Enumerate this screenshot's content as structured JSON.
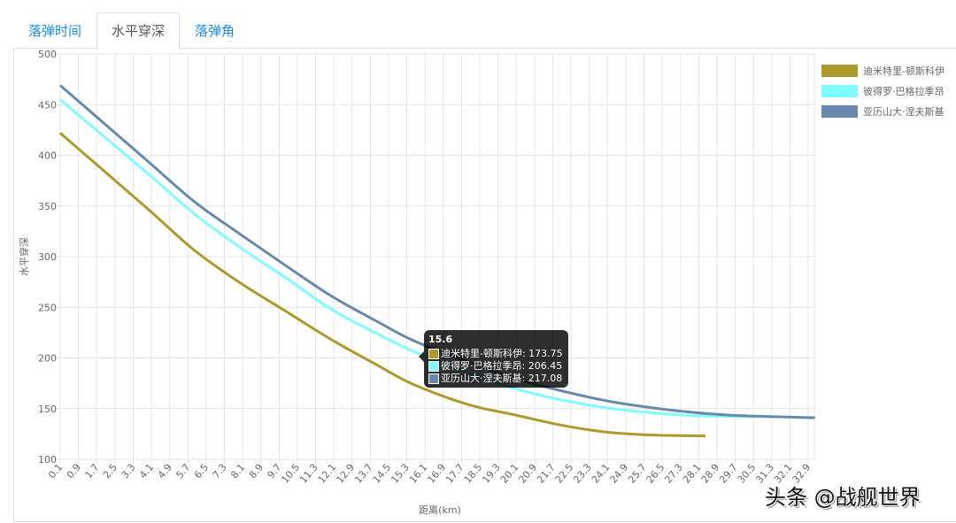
{
  "tabs": [
    {
      "label": "落弹时间",
      "active": false
    },
    {
      "label": "水平穿深",
      "active": true
    },
    {
      "label": "落弹角",
      "active": false
    }
  ],
  "chart_data": {
    "type": "line",
    "xlabel": "距离(km)",
    "ylabel": "水平穿深",
    "ylim": [
      100,
      500
    ],
    "yticks": [
      100,
      150,
      200,
      250,
      300,
      350,
      400,
      450,
      500
    ],
    "xlim": [
      0.1,
      33.2
    ],
    "xticks": [
      "0.1",
      "0.9",
      "1.7",
      "2.5",
      "3.3",
      "4.1",
      "4.9",
      "5.7",
      "6.5",
      "7.3",
      "8.1",
      "8.9",
      "9.7",
      "10.5",
      "11.3",
      "12.1",
      "12.9",
      "13.7",
      "14.5",
      "15.3",
      "16.1",
      "16.9",
      "17.7",
      "18.5",
      "19.3",
      "20.1",
      "20.9",
      "21.7",
      "22.5",
      "23.3",
      "24.1",
      "24.9",
      "25.7",
      "26.5",
      "27.3",
      "28.1",
      "28.9",
      "29.7",
      "30.5",
      "31.3",
      "32.1",
      "32.9"
    ],
    "grid": true,
    "legend_position": "right",
    "series": [
      {
        "name": "迪米特里-顿斯科伊",
        "color": "#ad9a2c",
        "x": [
          0.1,
          2,
          4,
          6,
          8,
          10,
          12,
          14,
          15.6,
          18,
          20,
          22,
          24,
          26,
          28.4
        ],
        "y": [
          422,
          385,
          346,
          306,
          274,
          246,
          218,
          193,
          173.75,
          154,
          144,
          134,
          127,
          124,
          123
        ]
      },
      {
        "name": "彼得罗·巴格拉季昂",
        "color": "#80fbff",
        "x": [
          0.1,
          2,
          4,
          6,
          8,
          10,
          12,
          14,
          15.6,
          18,
          20,
          22,
          24,
          26,
          28,
          31.2
        ],
        "y": [
          455,
          419,
          381,
          342,
          309,
          279,
          248,
          224,
          206.45,
          185,
          170,
          159,
          151,
          146,
          143,
          142
        ]
      },
      {
        "name": "亚历山大·涅夫斯基",
        "color": "#6789ab",
        "x": [
          0.1,
          2,
          4,
          6,
          8,
          10,
          12,
          14,
          15.6,
          18,
          20,
          22,
          24,
          26,
          28,
          30,
          33.2
        ],
        "y": [
          469,
          432,
          393,
          354,
          322,
          291,
          261,
          236,
          217.08,
          196,
          180,
          168,
          158,
          151,
          146,
          143,
          141
        ]
      }
    ],
    "tooltip": {
      "title": "15.6",
      "rows": [
        {
          "label": "迪米特里-顿斯科伊: 173.75",
          "color": "#ad9a2c"
        },
        {
          "label": "彼得罗·巴格拉季昂: 206.45",
          "color": "#80fbff"
        },
        {
          "label": "亚历山大·涅夫斯基: 217.08",
          "color": "#6789ab"
        }
      ]
    }
  },
  "watermark": "头条 @战舰世界"
}
